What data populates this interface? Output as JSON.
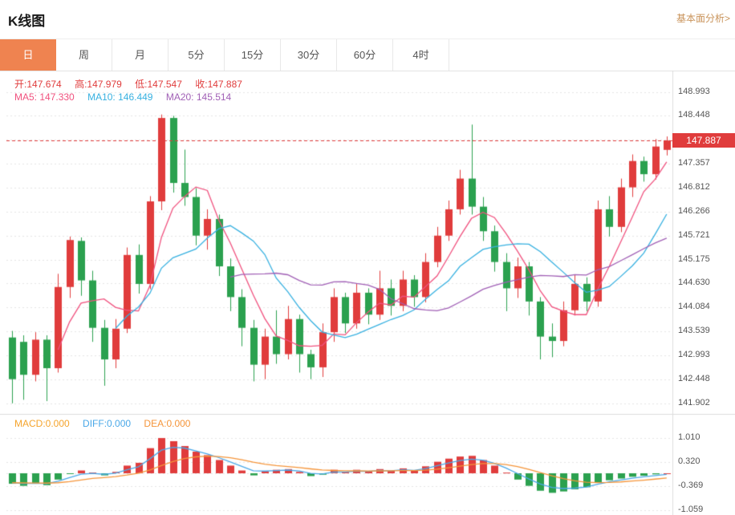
{
  "header": {
    "title": "K线图",
    "link": "基本面分析>"
  },
  "tabs": {
    "items": [
      "日",
      "周",
      "月",
      "5分",
      "15分",
      "30分",
      "60分",
      "4时"
    ],
    "active_index": 0
  },
  "ohlc": {
    "open_label": "开:",
    "open": "147.674",
    "high_label": "高:",
    "high": "147.979",
    "low_label": "低:",
    "low": "147.547",
    "close_label": "收:",
    "close": "147.887"
  },
  "ma": {
    "ma5_label": "MA5: ",
    "ma5": "147.330",
    "ma10_label": "MA10: ",
    "ma10": "146.449",
    "ma20_label": "MA20: ",
    "ma20": "145.514"
  },
  "macd_readout": {
    "macd_label": "MACD:",
    "macd": "0.000",
    "diff_label": "DIFF:",
    "diff": "0.000",
    "dea_label": "DEA:",
    "dea": "0.000"
  },
  "price_tag": "147.887",
  "colors": {
    "up": "#e03c3c",
    "down": "#2ba14f",
    "ma5": "#f0517e",
    "ma10": "#36b0e0",
    "ma20": "#a05fb5",
    "diff_line": "#4aa8e8",
    "dea_line": "#f5953a",
    "grid": "#e4e4e4",
    "separator": "#dddddd",
    "axis_text": "#555555",
    "active_tab_bg": "#ef8350",
    "link_text": "#c9935a",
    "price_line": "#e03c3c"
  },
  "chart_data": {
    "type": "candlestick",
    "title": "K线图",
    "legend": [
      "MA5",
      "MA10",
      "MA20"
    ],
    "y_axis_ticks": [
      "148.993",
      "148.448",
      "147.357",
      "146.812",
      "146.266",
      "145.721",
      "145.175",
      "144.630",
      "144.084",
      "143.539",
      "142.993",
      "142.448",
      "141.902"
    ],
    "y_tick_step": 0.5455,
    "y_top_value": 149.48,
    "last_price": 147.887,
    "candles_format": [
      "open",
      "high",
      "low",
      "close"
    ],
    "candles": [
      [
        143.4,
        143.55,
        141.9,
        142.45
      ],
      [
        143.3,
        143.45,
        141.98,
        142.55
      ],
      [
        142.55,
        143.52,
        142.4,
        143.35
      ],
      [
        143.35,
        143.45,
        141.95,
        142.7
      ],
      [
        142.7,
        144.85,
        142.6,
        144.55
      ],
      [
        144.55,
        145.7,
        144.3,
        145.62
      ],
      [
        145.6,
        145.68,
        144.35,
        144.7
      ],
      [
        144.7,
        144.92,
        143.3,
        143.62
      ],
      [
        143.62,
        143.8,
        142.3,
        142.9
      ],
      [
        142.9,
        143.82,
        142.7,
        143.6
      ],
      [
        143.6,
        145.45,
        143.5,
        145.28
      ],
      [
        145.28,
        145.52,
        144.4,
        144.62
      ],
      [
        144.62,
        146.62,
        144.5,
        146.5
      ],
      [
        146.5,
        148.48,
        146.3,
        148.4
      ],
      [
        148.4,
        148.45,
        146.7,
        146.92
      ],
      [
        146.92,
        147.68,
        146.4,
        146.6
      ],
      [
        146.6,
        146.8,
        145.5,
        145.72
      ],
      [
        145.72,
        146.32,
        145.4,
        146.1
      ],
      [
        146.1,
        146.2,
        144.8,
        145.02
      ],
      [
        145.02,
        145.2,
        144.0,
        144.32
      ],
      [
        144.32,
        144.5,
        143.2,
        143.62
      ],
      [
        143.62,
        143.8,
        142.4,
        142.78
      ],
      [
        142.78,
        143.6,
        142.45,
        143.42
      ],
      [
        143.42,
        144.02,
        142.8,
        143.02
      ],
      [
        143.02,
        144.12,
        142.9,
        143.82
      ],
      [
        143.82,
        143.92,
        142.6,
        143.02
      ],
      [
        143.02,
        143.12,
        142.45,
        142.72
      ],
      [
        142.72,
        143.72,
        142.5,
        143.52
      ],
      [
        143.52,
        144.52,
        143.3,
        144.32
      ],
      [
        144.32,
        144.42,
        143.5,
        143.72
      ],
      [
        143.72,
        144.62,
        143.6,
        144.42
      ],
      [
        144.42,
        144.52,
        143.7,
        143.92
      ],
      [
        143.92,
        144.92,
        143.8,
        144.52
      ],
      [
        144.52,
        144.72,
        143.9,
        144.12
      ],
      [
        144.12,
        144.92,
        144.0,
        144.72
      ],
      [
        144.72,
        144.82,
        144.1,
        144.32
      ],
      [
        144.32,
        145.32,
        144.2,
        145.12
      ],
      [
        145.12,
        145.92,
        145.0,
        145.72
      ],
      [
        145.72,
        146.52,
        145.6,
        146.32
      ],
      [
        146.32,
        147.22,
        146.2,
        147.02
      ],
      [
        147.02,
        148.25,
        146.2,
        146.38
      ],
      [
        146.38,
        146.6,
        145.6,
        145.82
      ],
      [
        145.82,
        145.95,
        144.9,
        145.12
      ],
      [
        145.12,
        145.32,
        144.0,
        144.52
      ],
      [
        144.52,
        145.22,
        144.3,
        145.02
      ],
      [
        145.02,
        145.12,
        143.9,
        144.22
      ],
      [
        144.22,
        144.32,
        142.9,
        143.42
      ],
      [
        143.42,
        143.72,
        142.95,
        143.32
      ],
      [
        143.32,
        144.22,
        143.2,
        144.02
      ],
      [
        144.02,
        144.82,
        143.9,
        144.62
      ],
      [
        144.62,
        144.77,
        144.0,
        144.22
      ],
      [
        144.22,
        146.52,
        144.1,
        146.32
      ],
      [
        146.32,
        146.62,
        145.7,
        145.92
      ],
      [
        145.92,
        147.02,
        145.8,
        146.82
      ],
      [
        146.82,
        147.57,
        146.6,
        147.42
      ],
      [
        147.42,
        147.52,
        146.95,
        147.12
      ],
      [
        147.12,
        147.92,
        147.0,
        147.75
      ],
      [
        147.674,
        147.979,
        147.547,
        147.887
      ]
    ],
    "ma_periods": [
      5,
      10,
      20
    ],
    "macd": {
      "y_ticks": [
        "1.010",
        "0.320",
        "-0.369",
        "-1.059"
      ],
      "hist": [
        -0.3,
        -0.36,
        -0.3,
        -0.34,
        -0.18,
        -0.02,
        0.08,
        0.02,
        -0.06,
        0.04,
        0.22,
        0.3,
        0.72,
        1.01,
        0.92,
        0.78,
        0.62,
        0.52,
        0.38,
        0.22,
        0.08,
        -0.06,
        0.06,
        0.1,
        0.12,
        0.04,
        -0.08,
        -0.04,
        0.1,
        0.04,
        0.1,
        0.05,
        0.12,
        0.07,
        0.14,
        0.08,
        0.2,
        0.33,
        0.42,
        0.48,
        0.5,
        0.38,
        0.22,
        0.02,
        -0.18,
        -0.36,
        -0.5,
        -0.56,
        -0.52,
        -0.46,
        -0.4,
        -0.26,
        -0.2,
        -0.15,
        -0.1,
        -0.07,
        -0.03,
        0.0
      ]
    }
  }
}
